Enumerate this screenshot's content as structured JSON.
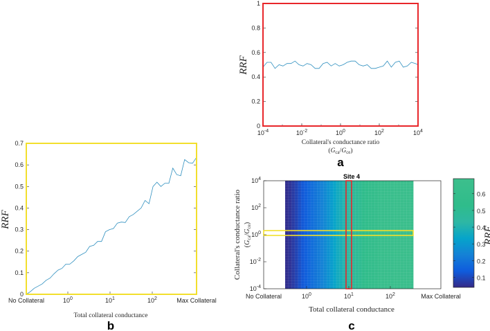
{
  "chart_data": [
    {
      "id": "a",
      "type": "line",
      "panel_label": "a",
      "xlabel": "Collateral's conductance ratio",
      "xlabel_sub_html": "(<tspan font-style='italic'>G</tspan><tspan font-size='7' dy='2'>ca</tspan><tspan dy='-2'>/</tspan><tspan font-style='italic'>G</tspan><tspan font-size='7' dy='2'>ce</tspan><tspan dy='-2'>)</tspan>",
      "ylabel": "RRF",
      "x_scale": "log",
      "xlim": [
        0.0001,
        10000
      ],
      "ylim": [
        0,
        1
      ],
      "x_tick_labels": [
        "10^-4",
        "10^-2",
        "10^0",
        "10^2",
        "10^4"
      ],
      "y_ticks": [
        0,
        0.2,
        0.4,
        0.6,
        0.8,
        1
      ],
      "y_tick_labels": [
        "0",
        "0.2",
        "0.4",
        "0.6",
        "0.8",
        "1"
      ],
      "frame_color": "#e8262a",
      "series": [
        {
          "color": "#2e8fbf",
          "x": [
            0.0001,
            0.000161,
            0.000259,
            0.000418,
            0.000672,
            0.00108,
            0.00174,
            0.0028,
            0.00452,
            0.00728,
            0.0117,
            0.0188,
            0.0304,
            0.0489,
            0.0788,
            0.127,
            0.204,
            0.329,
            0.53,
            0.853,
            1.37,
            2.21,
            3.56,
            5.74,
            9.24,
            14.9,
            24.0,
            38.6,
            62.1,
            100,
            161,
            259,
            418,
            672,
            1080,
            1740,
            2800,
            4520,
            7280,
            10000
          ],
          "y": [
            0.48,
            0.52,
            0.52,
            0.47,
            0.5,
            0.49,
            0.51,
            0.51,
            0.53,
            0.5,
            0.49,
            0.51,
            0.5,
            0.47,
            0.47,
            0.51,
            0.52,
            0.49,
            0.51,
            0.49,
            0.5,
            0.52,
            0.53,
            0.53,
            0.5,
            0.49,
            0.5,
            0.47,
            0.47,
            0.48,
            0.49,
            0.53,
            0.48,
            0.52,
            0.53,
            0.48,
            0.49,
            0.52,
            0.51,
            0.5
          ]
        }
      ]
    },
    {
      "id": "b",
      "type": "line",
      "panel_label": "b",
      "xlabel": "Total collateral conductance",
      "ylabel": "RRF",
      "x_scale": "log",
      "x_tick_labels": [
        "No Collateral",
        "10^0",
        "10^1",
        "10^2",
        "Max Collateral"
      ],
      "ylim": [
        0,
        0.7
      ],
      "y_ticks": [
        0,
        0.1,
        0.2,
        0.3,
        0.4,
        0.5,
        0.6,
        0.7
      ],
      "y_tick_labels": [
        "0",
        "0.1",
        "0.2",
        "0.3",
        "0.4",
        "0.5",
        "0.6",
        "0.7"
      ],
      "frame_color": "#f2df2c",
      "series": [
        {
          "color": "#2e8fbf",
          "y": [
            0.0,
            0.012,
            0.028,
            0.038,
            0.048,
            0.065,
            0.075,
            0.095,
            0.112,
            0.12,
            0.14,
            0.14,
            0.155,
            0.175,
            0.185,
            0.195,
            0.222,
            0.227,
            0.245,
            0.245,
            0.29,
            0.3,
            0.305,
            0.33,
            0.335,
            0.333,
            0.36,
            0.37,
            0.385,
            0.4,
            0.435,
            0.42,
            0.5,
            0.52,
            0.5,
            0.515,
            0.515,
            0.585,
            0.555,
            0.55,
            0.625,
            0.61,
            0.608,
            0.635
          ]
        }
      ]
    },
    {
      "id": "c",
      "type": "heatmap",
      "panel_label": "c",
      "title": "Site 4",
      "xlabel": "Total collateral conductance",
      "ylabel": "Collateral's conductance ratio",
      "ylabel_sub_html": "(<tspan font-style='italic'>G</tspan><tspan font-size='7' dy='2'>ca</tspan><tspan dy='-2'>/</tspan><tspan font-style='italic'>G</tspan><tspan font-size='7' dy='2'>ce</tspan><tspan dy='-2'>)</tspan>",
      "x_tick_labels": [
        "No Collateral",
        "10^0",
        "10^1",
        "10^2",
        "Max Collateral"
      ],
      "y_scale": "log",
      "ylim": [
        0.0001,
        10000
      ],
      "y_tick_labels": [
        "10^4",
        "10^2",
        "10^0",
        "10^-2",
        "10^-4"
      ],
      "colorbar": {
        "label": "RRF",
        "ticks": [
          0.1,
          0.2,
          0.3,
          0.4,
          0.5,
          0.6
        ],
        "range": [
          0.04,
          0.69
        ]
      },
      "column_values": [
        0.05,
        0.06,
        0.075,
        0.095,
        0.12,
        0.14,
        0.16,
        0.18,
        0.2,
        0.22,
        0.24,
        0.26,
        0.28,
        0.31,
        0.34,
        0.37,
        0.4,
        0.42,
        0.45,
        0.48,
        0.5,
        0.52,
        0.54,
        0.56,
        0.58,
        0.6,
        0.61,
        0.62,
        0.63,
        0.64,
        0.65,
        0.655,
        0.66,
        0.662,
        0.665,
        0.667,
        0.668,
        0.669,
        0.67,
        0.67
      ],
      "highlight_row_color": "#f2df2c",
      "highlight_col_color": "#e8262a"
    }
  ]
}
